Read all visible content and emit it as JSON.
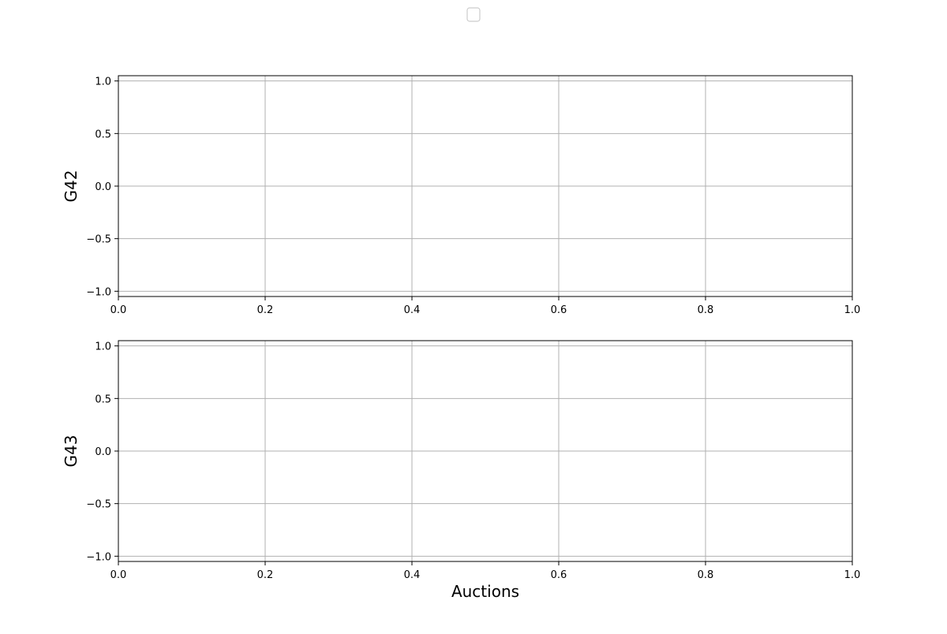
{
  "colors": {
    "grid": "#b0b0b0",
    "axes": "#000000",
    "legend_border": "#cccccc",
    "background": "#ffffff"
  },
  "chart_data": [
    {
      "type": "line",
      "ylabel": "G42",
      "xlabel": "",
      "xlim": [
        0.0,
        1.0
      ],
      "ylim": [
        -1.05,
        1.05
      ],
      "x_ticks": [
        0.0,
        0.2,
        0.4,
        0.6,
        0.8,
        1.0
      ],
      "x_tick_labels": [
        "0.0",
        "0.2",
        "0.4",
        "0.6",
        "0.8",
        "1.0"
      ],
      "y_ticks": [
        -1.0,
        -0.5,
        0.0,
        0.5,
        1.0
      ],
      "y_tick_labels": [
        "−1.0",
        "−0.5",
        "0.0",
        "0.5",
        "1.0"
      ],
      "grid": true,
      "series": []
    },
    {
      "type": "line",
      "ylabel": "G43",
      "xlabel": "Auctions",
      "xlim": [
        0.0,
        1.0
      ],
      "ylim": [
        -1.05,
        1.05
      ],
      "x_ticks": [
        0.0,
        0.2,
        0.4,
        0.6,
        0.8,
        1.0
      ],
      "x_tick_labels": [
        "0.0",
        "0.2",
        "0.4",
        "0.6",
        "0.8",
        "1.0"
      ],
      "y_ticks": [
        -1.0,
        -0.5,
        0.0,
        0.5,
        1.0
      ],
      "y_tick_labels": [
        "−1.0",
        "−0.5",
        "0.0",
        "0.5",
        "1.0"
      ],
      "grid": true,
      "series": []
    }
  ],
  "legend": {
    "placement": "top-center",
    "entries": []
  }
}
